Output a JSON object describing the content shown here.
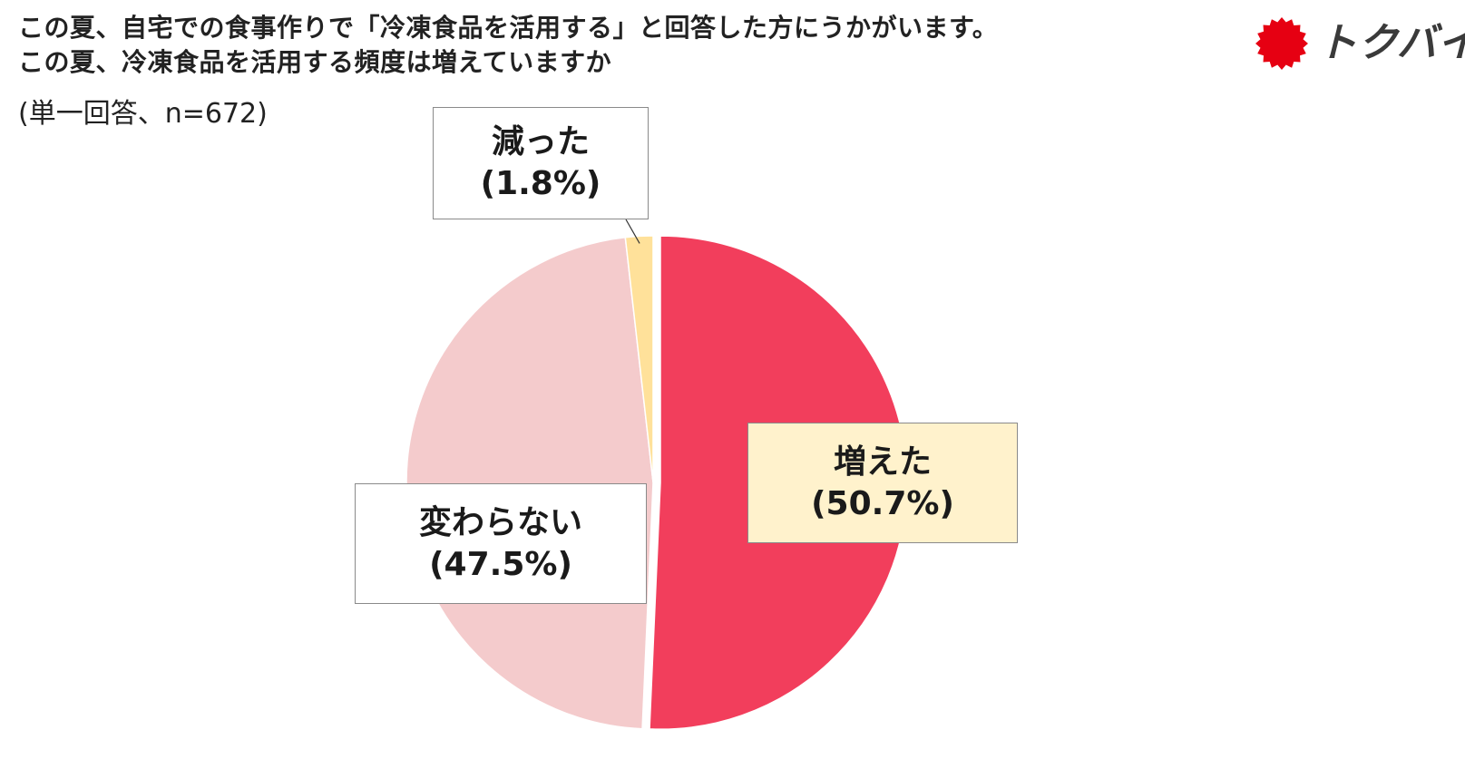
{
  "header": {
    "title_line1": "この夏、自宅での食事作りで「冷凍食品を活用する」と回答した方にうかがいます。",
    "title_line2": "この夏、冷凍食品を活用する頻度は増えていますか",
    "subtitle": "(単一回答、n=672)"
  },
  "logo": {
    "text": "トクバイ",
    "icon": "red-starburst-icon",
    "color": "#e60012"
  },
  "chart_data": {
    "type": "pie",
    "title": "この夏、冷凍食品を活用する頻度は増えていますか",
    "n": 672,
    "start": "12 o'clock, clockwise",
    "slices": [
      {
        "key": "increased",
        "label": "増えた",
        "pct_text": "(50.7%)",
        "value": 50.7,
        "color": "#f23e5c",
        "label_bg": "#fff2cc",
        "exploded": true
      },
      {
        "key": "decreased",
        "label": "減った",
        "pct_text": "(1.8%)",
        "value": 1.8,
        "color": "#ffe19a",
        "label_bg": "#ffffff",
        "exploded": false
      },
      {
        "key": "unchanged",
        "label": "変わらない",
        "pct_text": "(47.5%)",
        "value": 47.5,
        "color": "#f4cbcc",
        "label_bg": "#ffffff",
        "exploded": false
      }
    ],
    "order_clockwise": [
      "increased",
      "unchanged",
      "decreased"
    ],
    "legend": "none (callout labels)"
  }
}
